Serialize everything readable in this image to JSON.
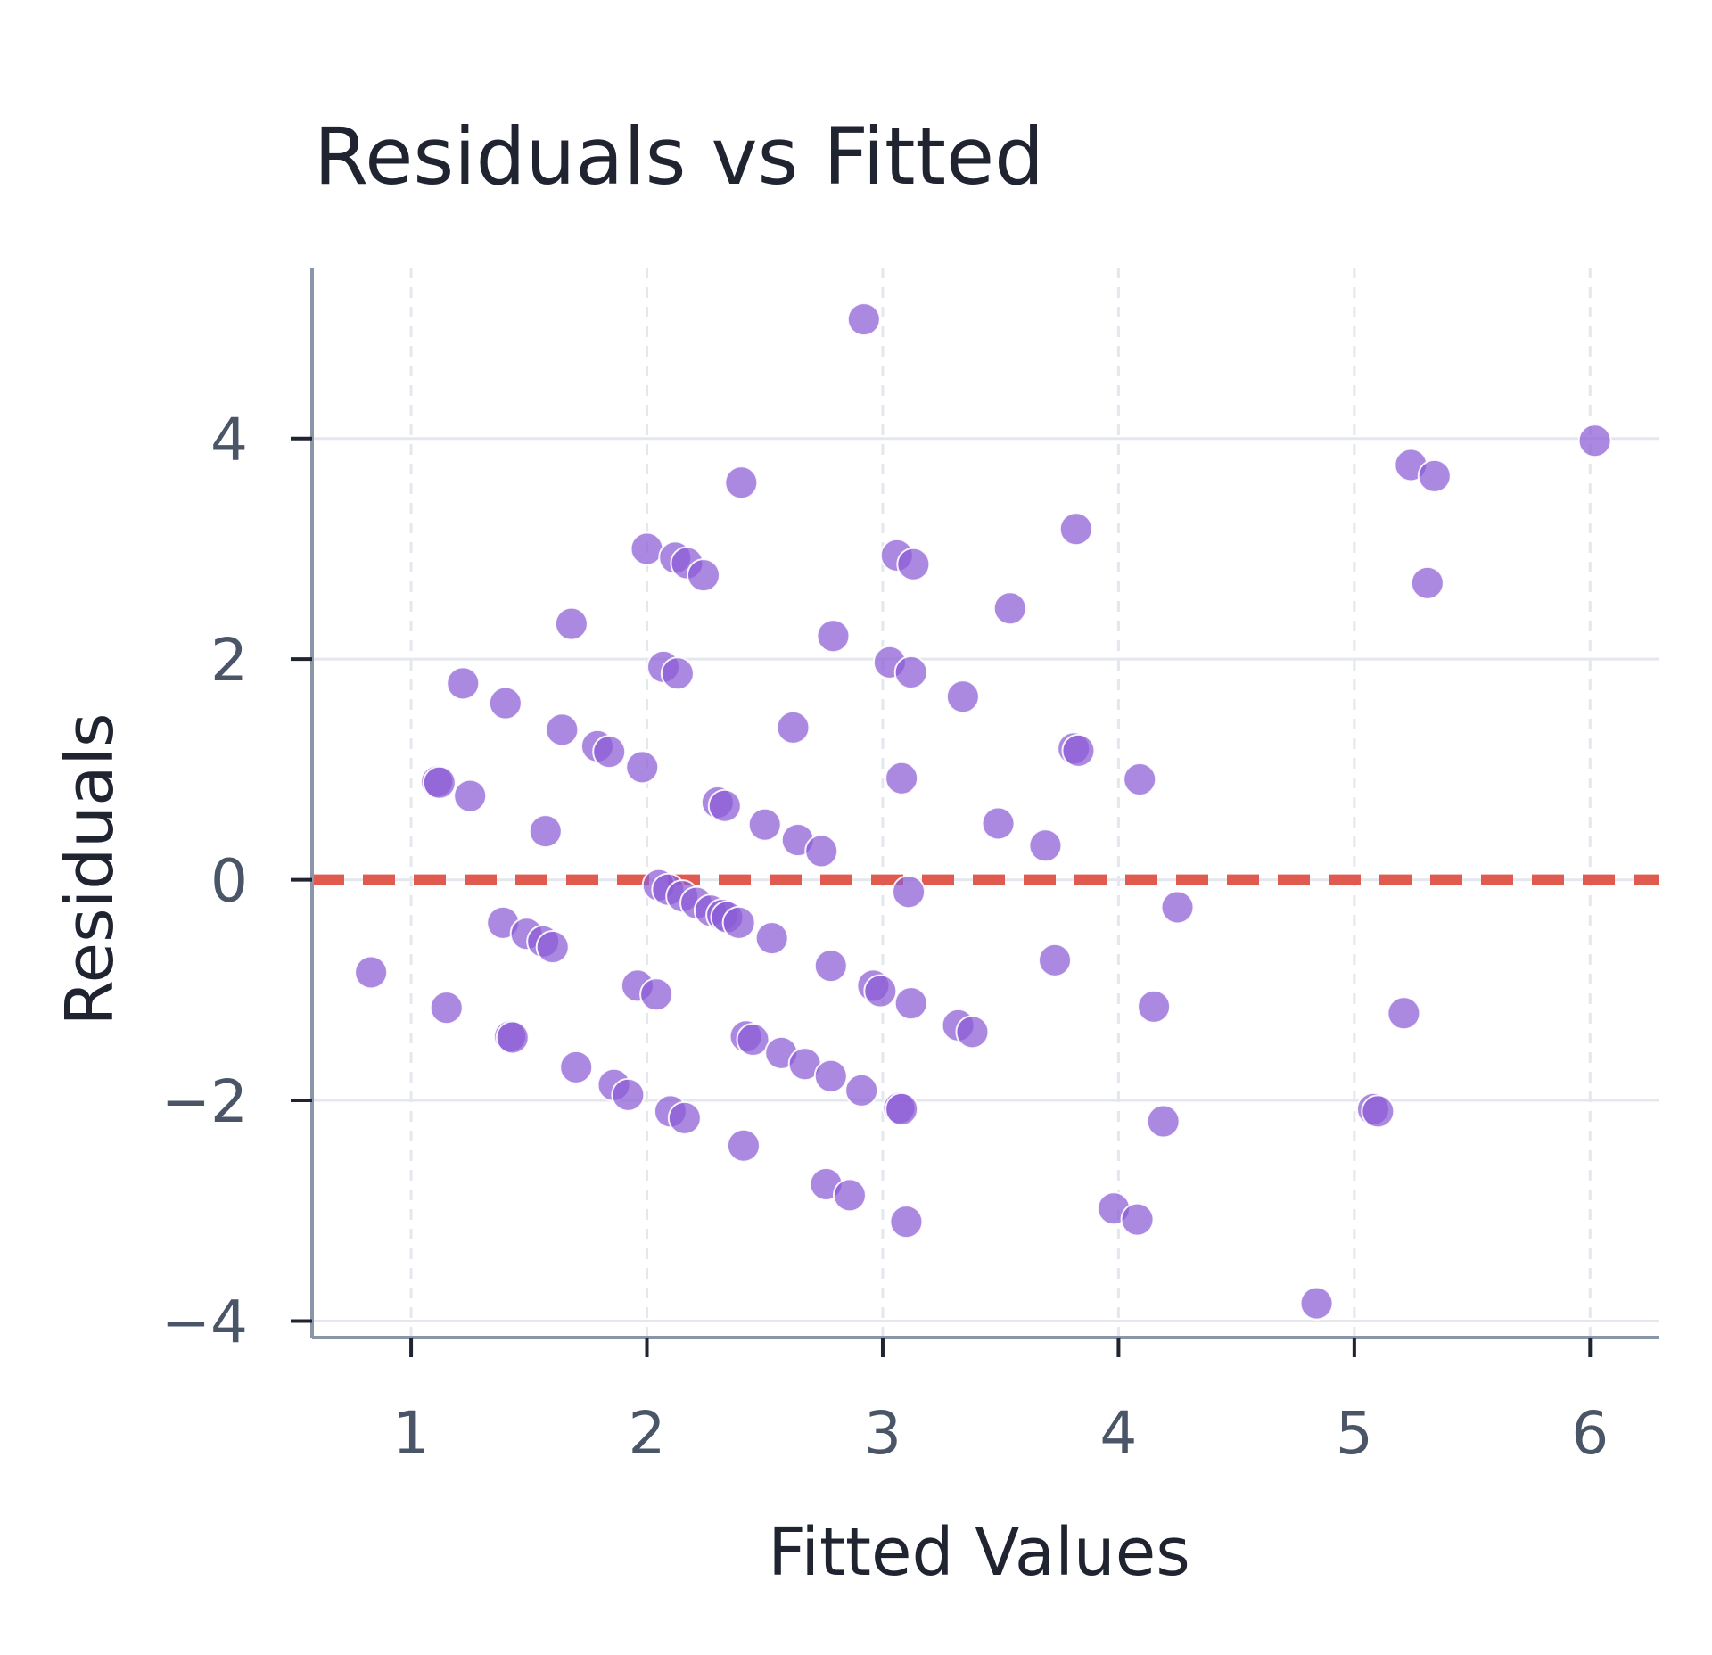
{
  "chart_data": {
    "type": "scatter",
    "title": "Residuals vs Fitted",
    "xlabel": "Fitted Values",
    "ylabel": "Residuals",
    "xlim": [
      0.58,
      6.29
    ],
    "ylim": [
      -4.15,
      5.55
    ],
    "x_ticks": [
      1,
      2,
      3,
      4,
      5,
      6
    ],
    "y_ticks": [
      -4,
      -2,
      0,
      2,
      4
    ],
    "x_tick_labels": [
      "1",
      "2",
      "3",
      "4",
      "5",
      "6"
    ],
    "y_tick_labels": [
      "−4",
      "−2",
      "0",
      "2",
      "4"
    ],
    "grid": {
      "vertical": "dashed",
      "horizontal": "solid"
    },
    "reference_line": {
      "y": 0,
      "style": "dashed",
      "color": "#e05a4f"
    },
    "colors": {
      "points": "#8b5cd6",
      "axis": "#8a96a8",
      "grid": "#e4e8ee",
      "text": "#1f2430",
      "tick_text": "#4a5568"
    },
    "series": [
      {
        "points": [
          {
            "x": 0.83,
            "y": -0.84
          },
          {
            "x": 1.11,
            "y": 0.89
          },
          {
            "x": 1.12,
            "y": 0.88
          },
          {
            "x": 1.15,
            "y": -1.16
          },
          {
            "x": 1.22,
            "y": 1.78
          },
          {
            "x": 1.25,
            "y": 0.76
          },
          {
            "x": 1.4,
            "y": 1.6
          },
          {
            "x": 1.39,
            "y": -0.39
          },
          {
            "x": 1.42,
            "y": -1.42
          },
          {
            "x": 1.43,
            "y": -1.43
          },
          {
            "x": 1.49,
            "y": -0.49
          },
          {
            "x": 1.56,
            "y": -0.56
          },
          {
            "x": 1.57,
            "y": 0.44
          },
          {
            "x": 1.6,
            "y": -0.61
          },
          {
            "x": 1.64,
            "y": 1.36
          },
          {
            "x": 1.68,
            "y": 2.32
          },
          {
            "x": 1.7,
            "y": -1.7
          },
          {
            "x": 1.79,
            "y": 1.21
          },
          {
            "x": 1.84,
            "y": 1.16
          },
          {
            "x": 1.86,
            "y": -1.86
          },
          {
            "x": 1.92,
            "y": -1.95
          },
          {
            "x": 1.96,
            "y": -0.96
          },
          {
            "x": 1.98,
            "y": 1.02
          },
          {
            "x": 2.0,
            "y": 3.0
          },
          {
            "x": 2.04,
            "y": -1.04
          },
          {
            "x": 2.05,
            "y": -0.05
          },
          {
            "x": 2.07,
            "y": 1.93
          },
          {
            "x": 2.09,
            "y": -0.09
          },
          {
            "x": 2.1,
            "y": -2.1
          },
          {
            "x": 2.12,
            "y": 2.92
          },
          {
            "x": 2.13,
            "y": 1.87
          },
          {
            "x": 2.15,
            "y": -0.15
          },
          {
            "x": 2.16,
            "y": -2.16
          },
          {
            "x": 2.17,
            "y": 2.87
          },
          {
            "x": 2.21,
            "y": -0.21
          },
          {
            "x": 2.24,
            "y": 2.76
          },
          {
            "x": 2.27,
            "y": -0.28
          },
          {
            "x": 2.3,
            "y": 0.7
          },
          {
            "x": 2.33,
            "y": 0.67
          },
          {
            "x": 2.32,
            "y": -0.32
          },
          {
            "x": 2.34,
            "y": -0.34
          },
          {
            "x": 2.39,
            "y": -0.39
          },
          {
            "x": 2.4,
            "y": 3.6
          },
          {
            "x": 2.41,
            "y": -2.41
          },
          {
            "x": 2.42,
            "y": -1.42
          },
          {
            "x": 2.45,
            "y": -1.45
          },
          {
            "x": 2.5,
            "y": 0.5
          },
          {
            "x": 2.53,
            "y": -0.53
          },
          {
            "x": 2.57,
            "y": -1.57
          },
          {
            "x": 2.62,
            "y": 1.38
          },
          {
            "x": 2.64,
            "y": 0.36
          },
          {
            "x": 2.67,
            "y": -1.67
          },
          {
            "x": 2.74,
            "y": 0.26
          },
          {
            "x": 2.76,
            "y": -2.76
          },
          {
            "x": 2.78,
            "y": -1.78
          },
          {
            "x": 2.79,
            "y": 2.21
          },
          {
            "x": 2.78,
            "y": -0.78
          },
          {
            "x": 2.86,
            "y": -2.86
          },
          {
            "x": 2.91,
            "y": -1.91
          },
          {
            "x": 2.92,
            "y": 5.08
          },
          {
            "x": 2.96,
            "y": -0.96
          },
          {
            "x": 2.99,
            "y": -1.01
          },
          {
            "x": 3.03,
            "y": 1.97
          },
          {
            "x": 3.06,
            "y": 2.94
          },
          {
            "x": 3.07,
            "y": -2.07
          },
          {
            "x": 3.08,
            "y": -2.08
          },
          {
            "x": 3.08,
            "y": 0.92
          },
          {
            "x": 3.1,
            "y": -3.1
          },
          {
            "x": 3.11,
            "y": -0.11
          },
          {
            "x": 3.12,
            "y": 1.88
          },
          {
            "x": 3.12,
            "y": -1.12
          },
          {
            "x": 3.13,
            "y": 2.86
          },
          {
            "x": 3.32,
            "y": -1.32
          },
          {
            "x": 3.34,
            "y": 1.66
          },
          {
            "x": 3.38,
            "y": -1.38
          },
          {
            "x": 3.49,
            "y": 0.51
          },
          {
            "x": 3.54,
            "y": 2.46
          },
          {
            "x": 3.69,
            "y": 0.31
          },
          {
            "x": 3.73,
            "y": -0.73
          },
          {
            "x": 3.81,
            "y": 1.19
          },
          {
            "x": 3.82,
            "y": 3.18
          },
          {
            "x": 3.83,
            "y": 1.17
          },
          {
            "x": 3.98,
            "y": -2.98
          },
          {
            "x": 4.08,
            "y": -3.08
          },
          {
            "x": 4.09,
            "y": 0.91
          },
          {
            "x": 4.15,
            "y": -1.15
          },
          {
            "x": 4.19,
            "y": -2.19
          },
          {
            "x": 4.25,
            "y": -0.25
          },
          {
            "x": 4.84,
            "y": -3.84
          },
          {
            "x": 5.08,
            "y": -2.08
          },
          {
            "x": 5.1,
            "y": -2.1
          },
          {
            "x": 5.21,
            "y": -1.21
          },
          {
            "x": 5.24,
            "y": 3.76
          },
          {
            "x": 5.31,
            "y": 2.69
          },
          {
            "x": 5.34,
            "y": 3.66
          },
          {
            "x": 6.02,
            "y": 3.98
          }
        ]
      }
    ]
  }
}
